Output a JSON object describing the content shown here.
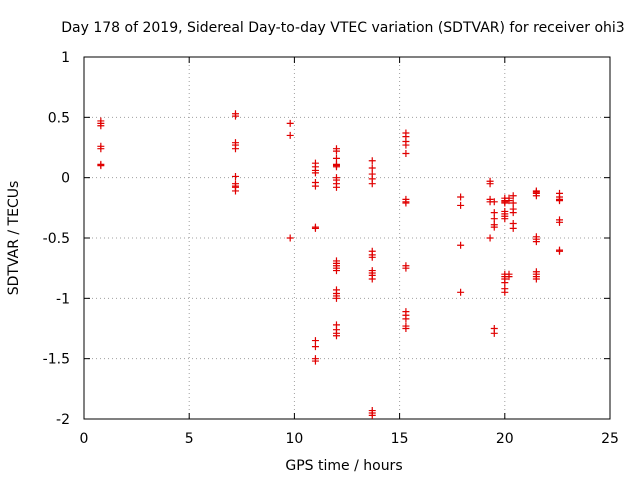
{
  "chart_data": {
    "type": "scatter",
    "title": "Day 178 of 2019, Sidereal Day-to-day VTEC variation (SDTVAR) for receiver ohi3",
    "xlabel": "GPS time / hours",
    "ylabel": "SDTVAR / TECUs",
    "xlim": [
      0,
      25
    ],
    "ylim": [
      -2,
      1
    ],
    "xticks": [
      0,
      5,
      10,
      15,
      20,
      25
    ],
    "yticks": [
      1,
      0.5,
      0,
      -0.5,
      -1,
      -1.5,
      -2
    ],
    "grid": true,
    "marker": "+",
    "marker_color": "#e00000",
    "series": [
      {
        "name": "SDTVAR",
        "points": [
          [
            0.8,
            0.47
          ],
          [
            0.8,
            0.45
          ],
          [
            0.8,
            0.43
          ],
          [
            0.8,
            0.26
          ],
          [
            0.8,
            0.24
          ],
          [
            0.8,
            0.11
          ],
          [
            0.8,
            0.1
          ],
          [
            7.2,
            0.53
          ],
          [
            7.2,
            0.51
          ],
          [
            7.2,
            0.29
          ],
          [
            7.2,
            0.27
          ],
          [
            7.2,
            0.24
          ],
          [
            7.2,
            0.01
          ],
          [
            7.2,
            -0.05
          ],
          [
            7.2,
            -0.07
          ],
          [
            7.2,
            -0.08
          ],
          [
            7.2,
            -0.11
          ],
          [
            9.8,
            0.45
          ],
          [
            9.8,
            0.35
          ],
          [
            9.8,
            -0.5
          ],
          [
            11.0,
            0.12
          ],
          [
            11.0,
            0.09
          ],
          [
            11.0,
            0.06
          ],
          [
            11.0,
            0.04
          ],
          [
            11.0,
            -0.04
          ],
          [
            11.0,
            -0.07
          ],
          [
            11.0,
            -0.41
          ],
          [
            11.0,
            -0.42
          ],
          [
            11.0,
            -1.35
          ],
          [
            11.0,
            -1.4
          ],
          [
            11.0,
            -1.5
          ],
          [
            11.0,
            -1.52
          ],
          [
            12.0,
            0.24
          ],
          [
            12.0,
            0.22
          ],
          [
            12.0,
            0.16
          ],
          [
            12.0,
            0.11
          ],
          [
            12.0,
            0.1
          ],
          [
            12.0,
            0.09
          ],
          [
            12.0,
            0.0
          ],
          [
            12.0,
            -0.02
          ],
          [
            12.0,
            -0.05
          ],
          [
            12.0,
            -0.08
          ],
          [
            12.0,
            -0.69
          ],
          [
            12.0,
            -0.71
          ],
          [
            12.0,
            -0.73
          ],
          [
            12.0,
            -0.75
          ],
          [
            12.0,
            -0.77
          ],
          [
            12.0,
            -0.93
          ],
          [
            12.0,
            -0.96
          ],
          [
            12.0,
            -0.98
          ],
          [
            12.0,
            -1.0
          ],
          [
            12.0,
            -1.22
          ],
          [
            12.0,
            -1.26
          ],
          [
            12.0,
            -1.29
          ],
          [
            12.0,
            -1.31
          ],
          [
            13.7,
            0.14
          ],
          [
            13.7,
            0.08
          ],
          [
            13.7,
            0.03
          ],
          [
            13.7,
            -0.01
          ],
          [
            13.7,
            -0.05
          ],
          [
            13.7,
            -0.61
          ],
          [
            13.7,
            -0.64
          ],
          [
            13.7,
            -0.66
          ],
          [
            13.7,
            -0.77
          ],
          [
            13.7,
            -0.79
          ],
          [
            13.7,
            -0.81
          ],
          [
            13.7,
            -0.84
          ],
          [
            13.7,
            -1.93
          ],
          [
            13.7,
            -1.95
          ],
          [
            13.7,
            -1.97
          ],
          [
            15.3,
            0.37
          ],
          [
            15.3,
            0.34
          ],
          [
            15.3,
            0.3
          ],
          [
            15.3,
            0.27
          ],
          [
            15.3,
            0.2
          ],
          [
            15.3,
            -0.18
          ],
          [
            15.3,
            -0.2
          ],
          [
            15.3,
            -0.21
          ],
          [
            15.3,
            -0.73
          ],
          [
            15.3,
            -0.75
          ],
          [
            15.3,
            -1.11
          ],
          [
            15.3,
            -1.14
          ],
          [
            15.3,
            -1.17
          ],
          [
            15.3,
            -1.23
          ],
          [
            15.3,
            -1.25
          ],
          [
            17.9,
            -0.16
          ],
          [
            17.9,
            -0.23
          ],
          [
            17.9,
            -0.56
          ],
          [
            17.9,
            -0.95
          ],
          [
            19.3,
            -0.03
          ],
          [
            19.3,
            -0.05
          ],
          [
            19.3,
            -0.18
          ],
          [
            19.3,
            -0.2
          ],
          [
            19.3,
            -0.5
          ],
          [
            19.5,
            -0.2
          ],
          [
            19.5,
            -0.29
          ],
          [
            19.5,
            -0.34
          ],
          [
            19.5,
            -0.39
          ],
          [
            19.5,
            -0.41
          ],
          [
            19.5,
            -1.25
          ],
          [
            19.5,
            -1.29
          ],
          [
            20.0,
            -0.17
          ],
          [
            20.0,
            -0.19
          ],
          [
            20.0,
            -0.2
          ],
          [
            20.0,
            -0.21
          ],
          [
            20.0,
            -0.28
          ],
          [
            20.0,
            -0.3
          ],
          [
            20.0,
            -0.32
          ],
          [
            20.0,
            -0.34
          ],
          [
            20.0,
            -0.8
          ],
          [
            20.0,
            -0.82
          ],
          [
            20.0,
            -0.84
          ],
          [
            20.0,
            -0.87
          ],
          [
            20.0,
            -0.92
          ],
          [
            20.0,
            -0.95
          ],
          [
            20.2,
            -0.17
          ],
          [
            20.2,
            -0.19
          ],
          [
            20.2,
            -0.8
          ],
          [
            20.2,
            -0.82
          ],
          [
            20.4,
            -0.15
          ],
          [
            20.4,
            -0.21
          ],
          [
            20.4,
            -0.26
          ],
          [
            20.4,
            -0.29
          ],
          [
            20.4,
            -0.38
          ],
          [
            20.4,
            -0.42
          ],
          [
            21.5,
            -0.11
          ],
          [
            21.5,
            -0.12
          ],
          [
            21.5,
            -0.13
          ],
          [
            21.5,
            -0.15
          ],
          [
            21.5,
            -0.49
          ],
          [
            21.5,
            -0.51
          ],
          [
            21.5,
            -0.53
          ],
          [
            21.5,
            -0.78
          ],
          [
            21.5,
            -0.8
          ],
          [
            21.5,
            -0.82
          ],
          [
            21.5,
            -0.84
          ],
          [
            22.6,
            -0.13
          ],
          [
            22.6,
            -0.16
          ],
          [
            22.6,
            -0.18
          ],
          [
            22.6,
            -0.19
          ],
          [
            22.6,
            -0.35
          ],
          [
            22.6,
            -0.37
          ],
          [
            22.6,
            -0.6
          ],
          [
            22.6,
            -0.61
          ]
        ]
      }
    ]
  }
}
